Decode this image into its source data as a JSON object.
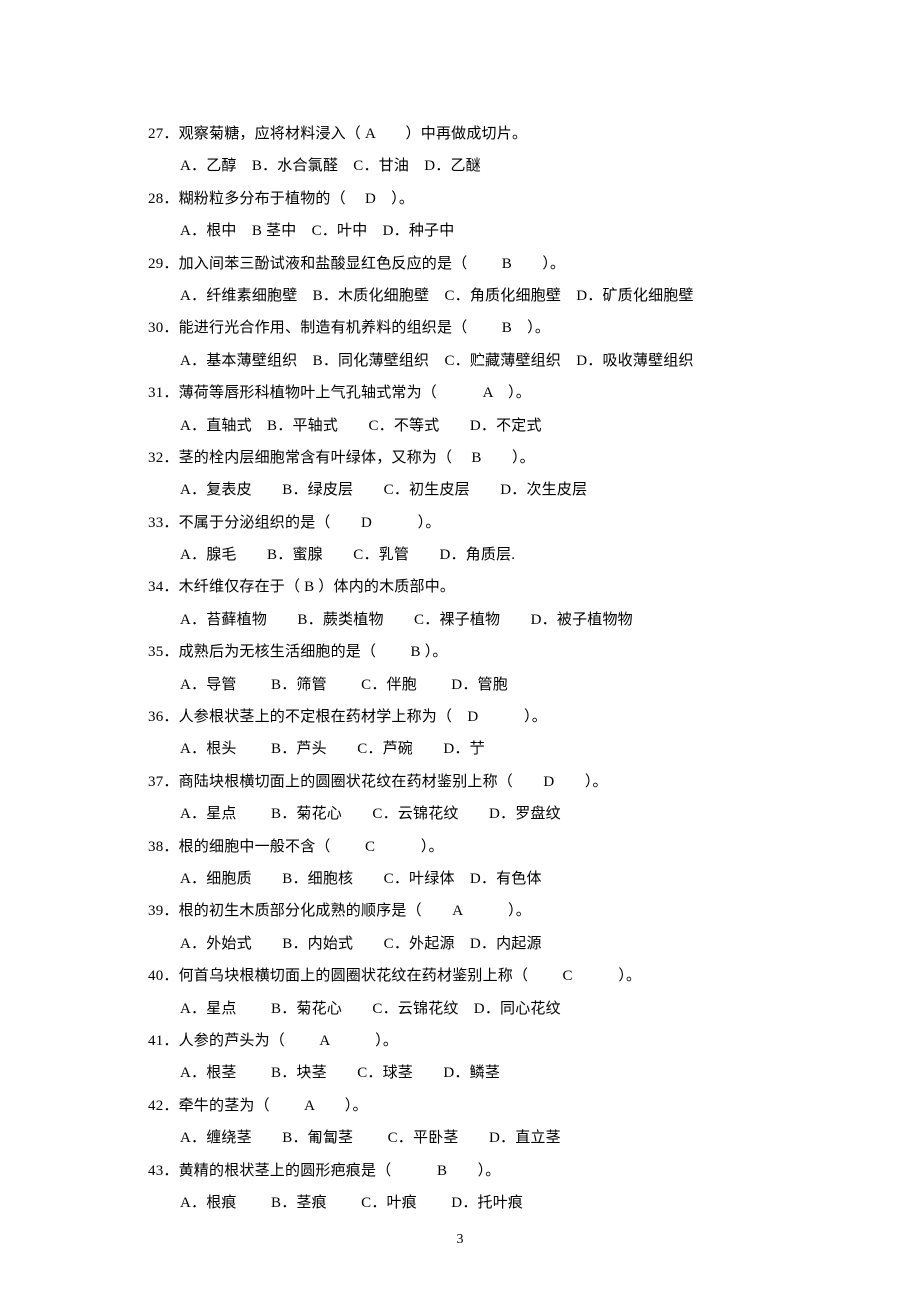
{
  "page_number": "3",
  "text_color": "#000000",
  "background_color": "#ffffff",
  "font_family": "SimSun",
  "font_size_pt": 11,
  "questions": [
    {
      "num": "27",
      "stem": "27．观察菊糖，应将材料浸入（ A　　）中再做成切片。",
      "opts": "A．乙醇　B．水合氯醛　C．甘油　D．乙醚"
    },
    {
      "num": "28",
      "stem": "28．糊粉粒多分布于植物的（　 D　）。",
      "opts": "A．根中　B 茎中　C．叶中　D．种子中"
    },
    {
      "num": "29",
      "stem": "29．加入间苯三酚试液和盐酸显红色反应的是（　　 B　　）。",
      "opts": "A．纤维素细胞壁　B．木质化细胞壁　C．角质化细胞壁　D．矿质化细胞壁"
    },
    {
      "num": "30",
      "stem": "30．能进行光合作用、制造有机养料的组织是（　　 B　）。",
      "opts": "A．基本薄壁组织　B．同化薄壁组织　C．贮藏薄壁组织　D．吸收薄壁组织"
    },
    {
      "num": "31",
      "stem": "31．薄荷等唇形科植物叶上气孔轴式常为（　　　A　）。",
      "opts": "A．直轴式　B．平轴式　　C．不等式　　D．不定式"
    },
    {
      "num": "32",
      "stem": "32．茎的栓内层细胞常含有叶绿体，又称为（　 B　　）。",
      "opts": "A．复表皮　　B．绿皮层　　C．初生皮层　　D．次生皮层"
    },
    {
      "num": "33",
      "stem": "33．不属于分泌组织的是（　　D　　　）。",
      "opts": "A．腺毛　　B．蜜腺　　C．乳管　　D．角质层."
    },
    {
      "num": "34",
      "stem": "34．木纤维仅存在于（ B ）体内的木质部中。",
      "opts": "A．苔藓植物　　B．蕨类植物　　C．裸子植物　　D．被子植物物"
    },
    {
      "num": "35",
      "stem": "35．成熟后为无核生活细胞的是（　　 B ）。",
      "opts": "A．导管　　 B．筛管　　 C．伴胞　　 D．管胞"
    },
    {
      "num": "36",
      "stem": "36．人参根状茎上的不定根在药材学上称为（　D　　　）。",
      "opts": "A．根头　　 B．芦头　　C．芦碗　　D．艼"
    },
    {
      "num": "37",
      "stem": "37．商陆块根横切面上的圆圈状花纹在药材鉴别上称（　　D　　）。",
      "opts": "A．星点　　 B．菊花心　　C．云锦花纹　　D．罗盘纹"
    },
    {
      "num": "38",
      "stem": "38．根的细胞中一般不含（　　 C　　　）。",
      "opts": "A．细胞质　　B．细胞核　　C．叶绿体　D．有色体"
    },
    {
      "num": "39",
      "stem": "39．根的初生木质部分化成熟的顺序是（　　A　　　）。",
      "opts": "A．外始式　　B．内始式　　C．外起源　D．内起源"
    },
    {
      "num": "40",
      "stem": "40．何首乌块根横切面上的圆圈状花纹在药材鉴别上称（　　 C　　　）。",
      "opts": "A．星点　　 B．菊花心　　C．云锦花纹　D．同心花纹"
    },
    {
      "num": "41",
      "stem": "41．人参的芦头为（　　 A　　　）。",
      "opts": "A．根茎　　 B．块茎　　C．球茎　　D．鳞茎"
    },
    {
      "num": "42",
      "stem": "42．牵牛的茎为（　　 A　　）。",
      "opts": "A．缠绕茎　　B．匍匐茎　　 C．平卧茎　　D．直立茎"
    },
    {
      "num": "43",
      "stem": "43．黄精的根状茎上的圆形疤痕是（　　　B　　）。",
      "opts": "A．根痕　　 B．茎痕　　 C．叶痕　　 D．托叶痕"
    }
  ]
}
